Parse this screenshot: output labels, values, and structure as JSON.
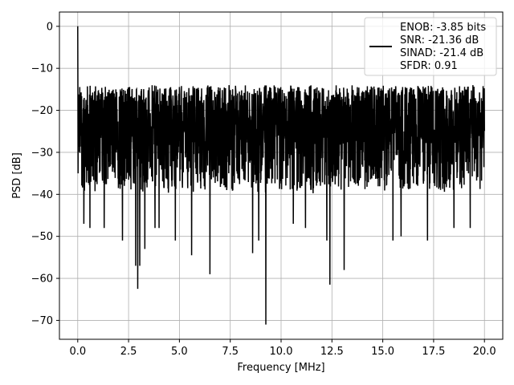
{
  "chart_data": {
    "type": "line",
    "title": "",
    "xlabel": "Frequency [MHz]",
    "ylabel": "PSD [dB]",
    "xlim": [
      -0.9,
      20.9
    ],
    "ylim": [
      -74.5,
      3.4
    ],
    "grid": true,
    "xticks": [
      0.0,
      2.5,
      5.0,
      7.5,
      10.0,
      12.5,
      15.0,
      17.5,
      20.0
    ],
    "xtick_labels": [
      "0.0",
      "2.5",
      "5.0",
      "7.5",
      "10.0",
      "12.5",
      "15.0",
      "17.5",
      "20.0"
    ],
    "yticks": [
      0,
      -10,
      -20,
      -30,
      -40,
      -50,
      -60,
      -70
    ],
    "ytick_labels": [
      "0",
      "−10",
      "−20",
      "−30",
      "−40",
      "−50",
      "−60",
      "−70"
    ],
    "legend": {
      "placement": "upper-right",
      "entries": [
        "ENOB: -3.85 bits",
        "SNR: -21.36 dB",
        "SINAD: -21.4 dB",
        "SFDR: 0.91"
      ]
    },
    "series": [
      {
        "color": "#000000",
        "x_range": [
          0.0,
          20.0
        ],
        "noise_band_db": [
          -40,
          -14
        ],
        "peak": {
          "x": 0.0,
          "y": 0.0
        },
        "dips": [
          {
            "x": 0.3,
            "y": -47
          },
          {
            "x": 0.6,
            "y": -48
          },
          {
            "x": 1.3,
            "y": -48
          },
          {
            "x": 2.2,
            "y": -51
          },
          {
            "x": 2.85,
            "y": -57
          },
          {
            "x": 2.95,
            "y": -62.5
          },
          {
            "x": 3.05,
            "y": -57
          },
          {
            "x": 3.3,
            "y": -53
          },
          {
            "x": 3.8,
            "y": -48
          },
          {
            "x": 4.0,
            "y": -48
          },
          {
            "x": 4.8,
            "y": -51
          },
          {
            "x": 5.6,
            "y": -54.5
          },
          {
            "x": 6.5,
            "y": -59
          },
          {
            "x": 8.6,
            "y": -54
          },
          {
            "x": 8.9,
            "y": -51
          },
          {
            "x": 9.25,
            "y": -71
          },
          {
            "x": 10.6,
            "y": -47
          },
          {
            "x": 11.2,
            "y": -48
          },
          {
            "x": 12.25,
            "y": -51
          },
          {
            "x": 12.4,
            "y": -61.5
          },
          {
            "x": 13.1,
            "y": -58
          },
          {
            "x": 15.5,
            "y": -51
          },
          {
            "x": 15.9,
            "y": -50
          },
          {
            "x": 17.2,
            "y": -51
          },
          {
            "x": 18.5,
            "y": -48
          },
          {
            "x": 19.3,
            "y": -48
          }
        ]
      }
    ]
  }
}
